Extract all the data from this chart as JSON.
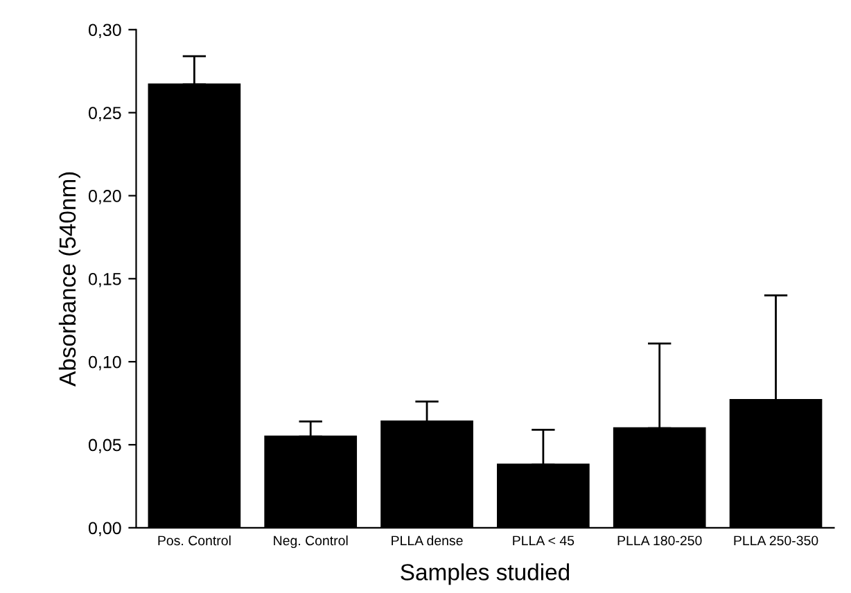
{
  "chart_data": {
    "type": "bar",
    "xlabel": "Samples studied",
    "ylabel": "Absorbance (540nm)",
    "categories": [
      "Pos. Control",
      "Neg. Control",
      "PLLA dense",
      "PLLA < 45",
      "PLLA 180-250",
      "PLLA 250-350"
    ],
    "values": [
      0.267,
      0.055,
      0.064,
      0.038,
      0.06,
      0.077
    ],
    "errors": [
      [
        0.267,
        0.284
      ],
      [
        0.055,
        0.064
      ],
      [
        0.064,
        0.076
      ],
      [
        0.038,
        0.059
      ],
      [
        0.06,
        0.111
      ],
      [
        0.077,
        0.14
      ]
    ],
    "color": "#000000",
    "ylim": [
      0,
      0.3
    ],
    "yticks": [
      {
        "value": 0,
        "label": "0,00"
      },
      {
        "value": 0.05,
        "label": "0,05"
      },
      {
        "value": 0.1,
        "label": "0,10"
      },
      {
        "value": 0.15,
        "label": "0,15"
      },
      {
        "value": 0.2,
        "label": "0,20"
      },
      {
        "value": 0.25,
        "label": "0,25"
      },
      {
        "value": 0.3,
        "label": "0,30"
      }
    ],
    "grid": false,
    "legend": false
  }
}
